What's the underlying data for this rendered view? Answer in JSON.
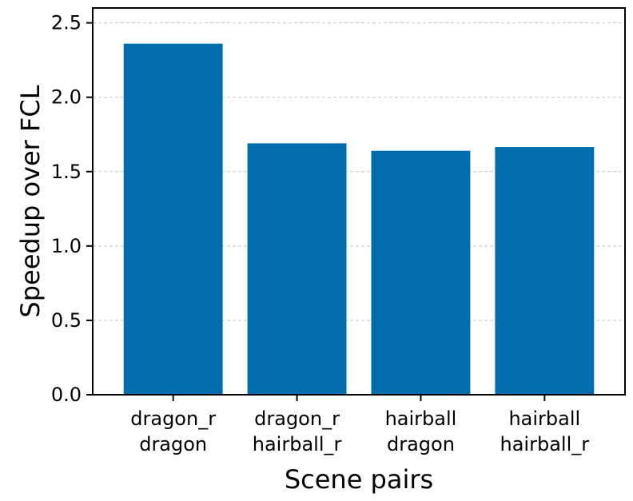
{
  "chart_data": {
    "type": "bar",
    "categories": [
      [
        "dragon_r",
        "dragon"
      ],
      [
        "dragon_r",
        "hairball_r"
      ],
      [
        "hairball",
        "dragon"
      ],
      [
        "hairball",
        "hairball_r"
      ]
    ],
    "values": [
      2.36,
      1.69,
      1.64,
      1.665
    ],
    "xlabel": "Scene pairs",
    "ylabel": "Speedup over FCL",
    "ylim": [
      0,
      2.6
    ],
    "yticks": [
      "0.0",
      "0.5",
      "1.0",
      "1.5",
      "2.0",
      "2.5"
    ],
    "ytick_values": [
      0,
      0.5,
      1.0,
      1.5,
      2.0,
      2.5
    ],
    "grid": "y-dashed",
    "colors": {
      "bar": "#006ead",
      "grid": "#c8c8c8",
      "axis": "#000000"
    }
  }
}
